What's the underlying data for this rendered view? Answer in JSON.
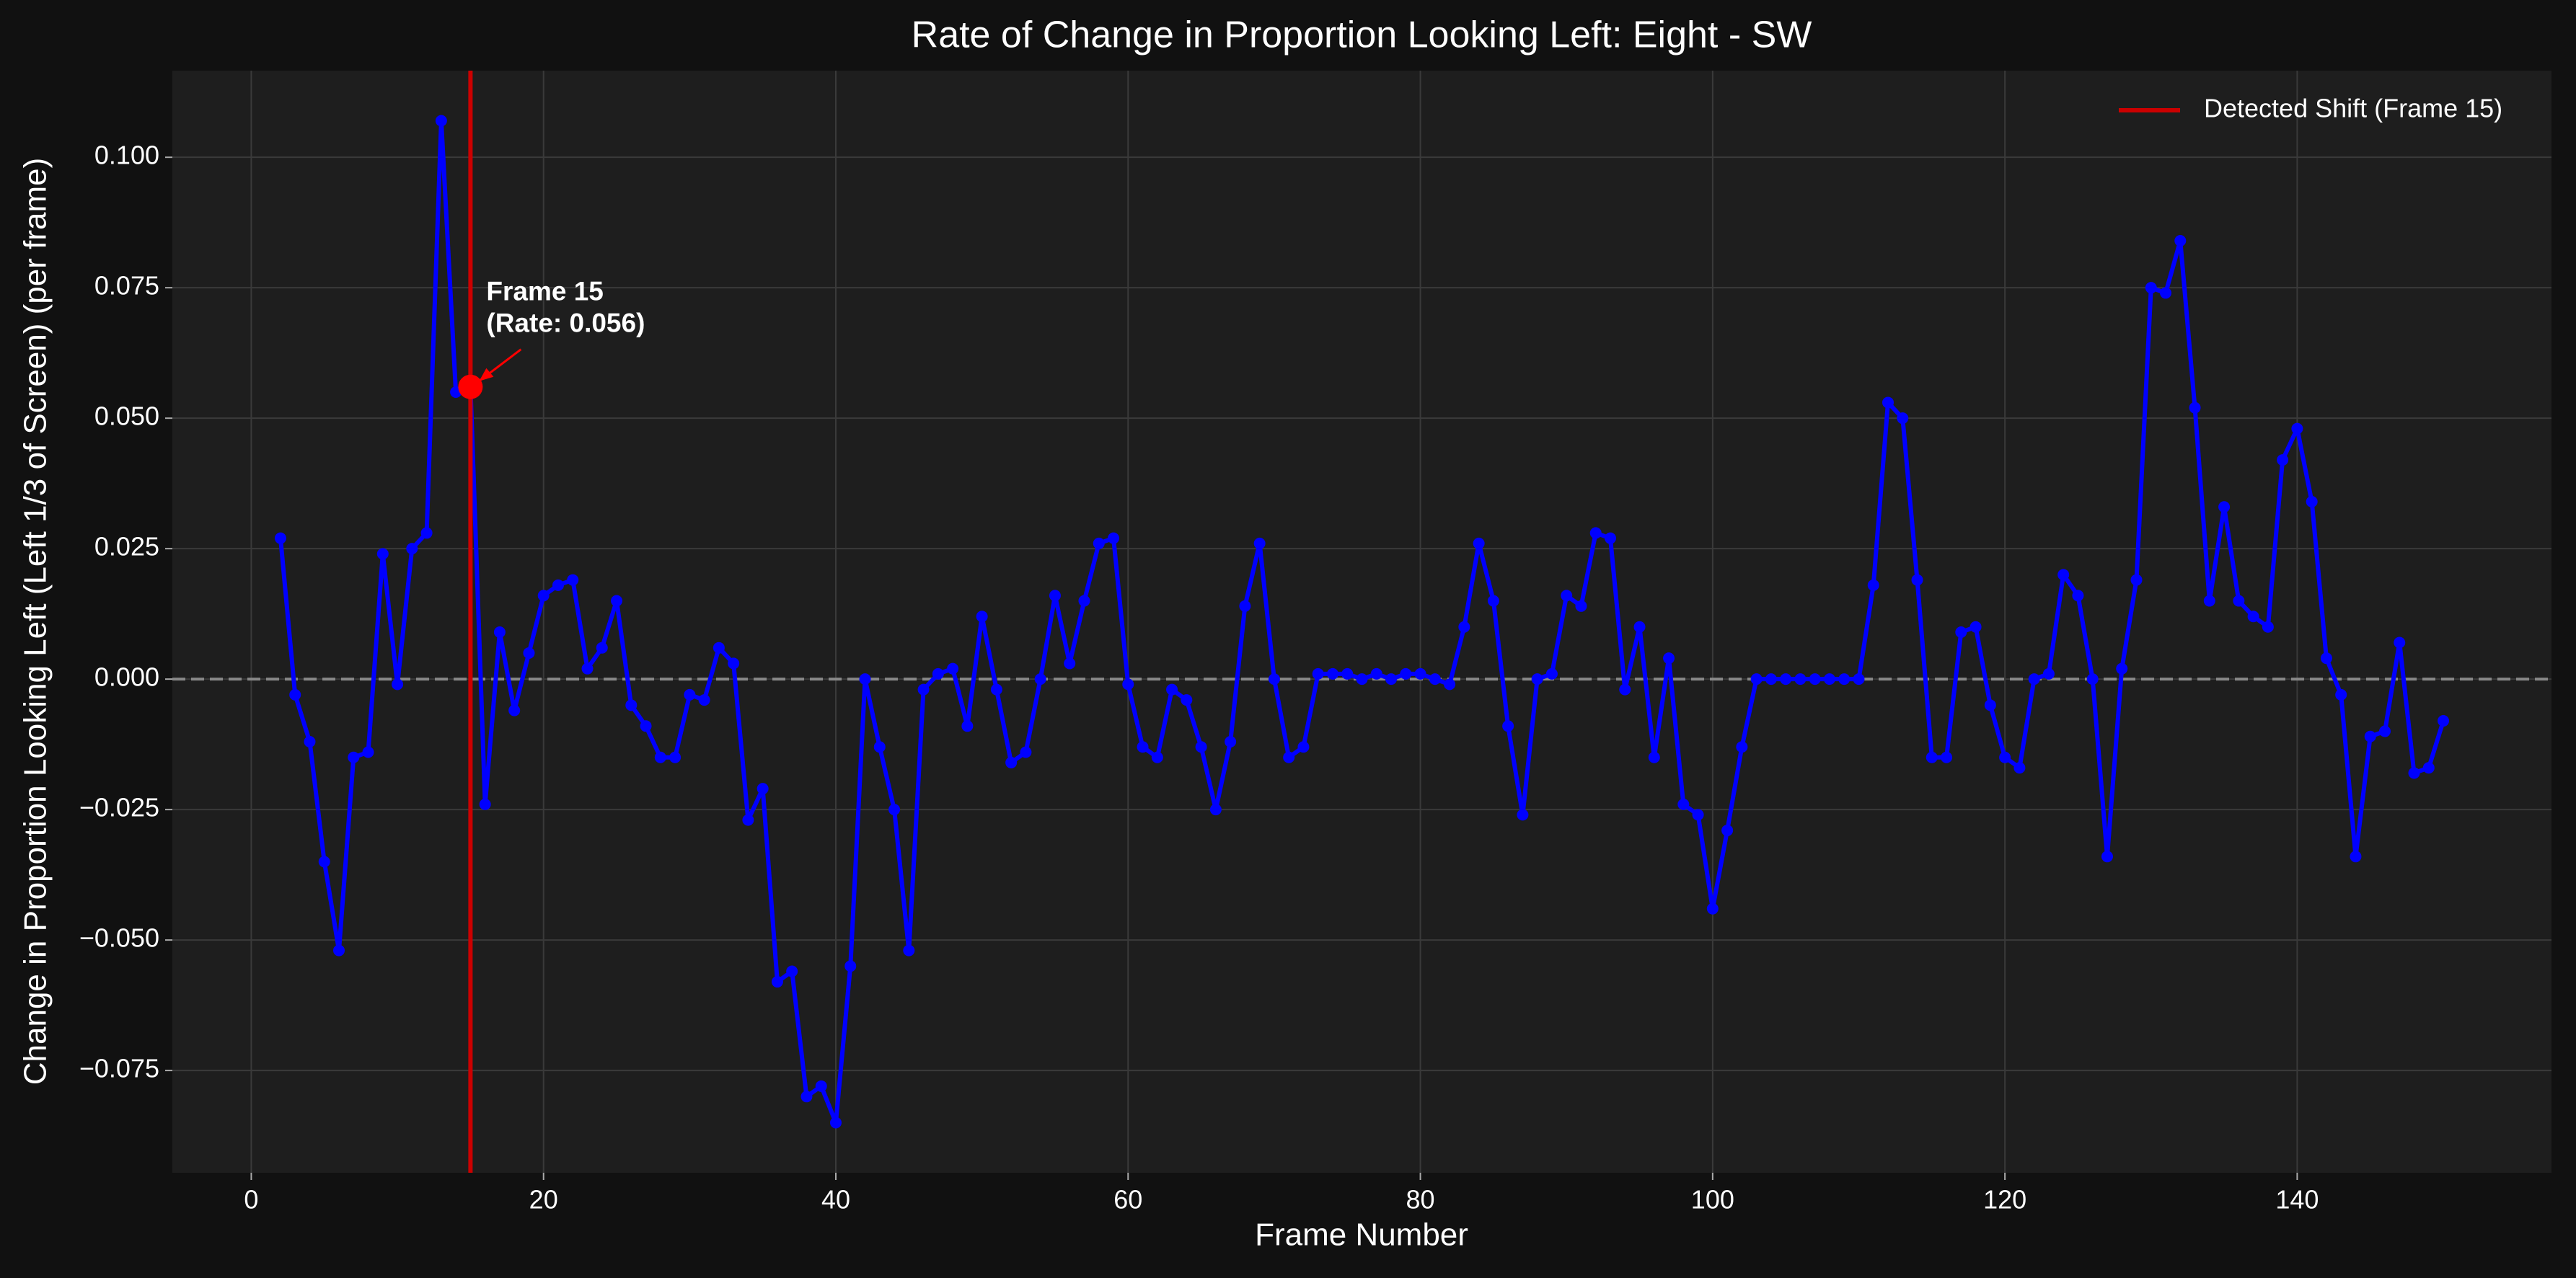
{
  "chart_data": {
    "type": "line",
    "title": "Rate of Change in Proportion Looking Left: Eight - SW",
    "x_label": "Frame Number",
    "y_label": "Change in Proportion Looking Left (Left 1/3 of Screen) (per frame)",
    "x": [
      2,
      3,
      4,
      5,
      6,
      7,
      8,
      9,
      10,
      11,
      12,
      13,
      14,
      15,
      16,
      17,
      18,
      19,
      20,
      21,
      22,
      23,
      24,
      25,
      26,
      27,
      28,
      29,
      30,
      31,
      32,
      33,
      34,
      35,
      36,
      37,
      38,
      39,
      40,
      41,
      42,
      43,
      44,
      45,
      46,
      47,
      48,
      49,
      50,
      51,
      52,
      53,
      54,
      55,
      56,
      57,
      58,
      59,
      60,
      61,
      62,
      63,
      64,
      65,
      66,
      67,
      68,
      69,
      70,
      71,
      72,
      73,
      74,
      75,
      76,
      77,
      78,
      79,
      80,
      81,
      82,
      83,
      84,
      85,
      86,
      87,
      88,
      89,
      90,
      91,
      92,
      93,
      94,
      95,
      96,
      97,
      98,
      99,
      100,
      101,
      102,
      103,
      104,
      105,
      106,
      107,
      108,
      109,
      110,
      111,
      112,
      113,
      114,
      115,
      116,
      117,
      118,
      119,
      120,
      121,
      122,
      123,
      124,
      125,
      126,
      127,
      128,
      129,
      130,
      131,
      132,
      133,
      134,
      135,
      136,
      137,
      138,
      139,
      140,
      141,
      142,
      143,
      144,
      145,
      146,
      147,
      148,
      149,
      150
    ],
    "series": [
      {
        "color": "#0000ff",
        "values": [
          0.027,
          -0.003,
          -0.012,
          -0.035,
          -0.052,
          -0.015,
          -0.014,
          0.024,
          -0.001,
          0.025,
          0.028,
          0.107,
          0.055,
          0.056,
          -0.024,
          0.009,
          -0.006,
          0.005,
          0.016,
          0.018,
          0.019,
          0.002,
          0.006,
          0.015,
          -0.005,
          -0.009,
          -0.015,
          -0.015,
          -0.003,
          -0.004,
          0.006,
          0.003,
          -0.027,
          -0.021,
          -0.058,
          -0.056,
          -0.08,
          -0.078,
          -0.085,
          -0.055,
          0.0,
          -0.013,
          -0.025,
          -0.052,
          -0.002,
          0.001,
          0.002,
          -0.009,
          0.012,
          -0.002,
          -0.016,
          -0.014,
          0.0,
          0.016,
          0.003,
          0.015,
          0.026,
          0.027,
          -0.001,
          -0.013,
          -0.015,
          -0.002,
          -0.004,
          -0.013,
          -0.025,
          -0.012,
          0.014,
          0.026,
          0.0,
          -0.015,
          -0.013,
          0.001,
          0.001,
          0.001,
          0.0,
          0.001,
          0.0,
          0.001,
          0.001,
          0.0,
          -0.001,
          0.01,
          0.026,
          0.015,
          -0.009,
          -0.026,
          0.0,
          0.001,
          0.016,
          0.014,
          0.028,
          0.027,
          -0.002,
          0.01,
          -0.015,
          0.004,
          -0.024,
          -0.026,
          -0.044,
          -0.029,
          -0.013,
          0.0,
          0.0,
          0.0,
          0.0,
          0.0,
          0.0,
          0.0,
          0.0,
          0.018,
          0.053,
          0.05,
          0.019,
          -0.015,
          -0.015,
          0.009,
          0.01,
          -0.005,
          -0.015,
          -0.017,
          0.0,
          0.001,
          0.02,
          0.016,
          0.0,
          -0.034,
          0.002,
          0.019,
          0.075,
          0.074,
          0.084,
          0.052,
          0.015,
          0.033,
          0.015,
          0.012,
          0.01,
          0.042,
          0.048,
          0.034,
          0.004,
          -0.003,
          -0.034,
          -0.011,
          -0.01,
          0.007,
          -0.018,
          -0.017,
          -0.008
        ]
      }
    ],
    "vlines": [
      {
        "x": 15,
        "color": "#cc0000",
        "label": "Detected Shift (Frame 15)"
      }
    ],
    "hlines": [
      {
        "y": 0,
        "color": "#888888"
      }
    ],
    "annotation": {
      "lines": [
        "Frame 15",
        "(Rate: 0.056)"
      ],
      "x": 15,
      "y": 0.056,
      "color": "#ff0000"
    },
    "xlim": [
      -5.4,
      157.4
    ],
    "ylim": [
      -0.0946,
      0.1166
    ],
    "xticks": [
      0,
      20,
      40,
      60,
      80,
      100,
      120,
      140
    ],
    "yticks": [
      {
        "value": -0.075,
        "label": "−0.075"
      },
      {
        "value": -0.05,
        "label": "−0.050"
      },
      {
        "value": -0.025,
        "label": "−0.025"
      },
      {
        "value": 0,
        "label": "0.000"
      },
      0.025,
      {
        "value": 0.05,
        "label": "0.050"
      },
      0.075,
      {
        "value": 0.1,
        "label": "0.100"
      }
    ],
    "grid": true,
    "legend": "upper right"
  }
}
